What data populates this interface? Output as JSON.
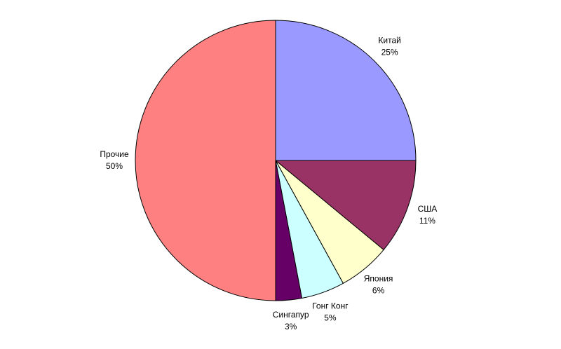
{
  "chart_data": {
    "type": "pie",
    "categories": [
      "Китай",
      "США",
      "Япония",
      "Гонг Конг",
      "Сингапур",
      "Прочие"
    ],
    "values": [
      25,
      11,
      6,
      5,
      3,
      50
    ],
    "value_labels": [
      "25%",
      "11%",
      "6%",
      "5%",
      "3%",
      "50%"
    ],
    "colors": [
      "#9999ff",
      "#993366",
      "#ffffcc",
      "#ccffff",
      "#660066",
      "#ff8080"
    ]
  }
}
